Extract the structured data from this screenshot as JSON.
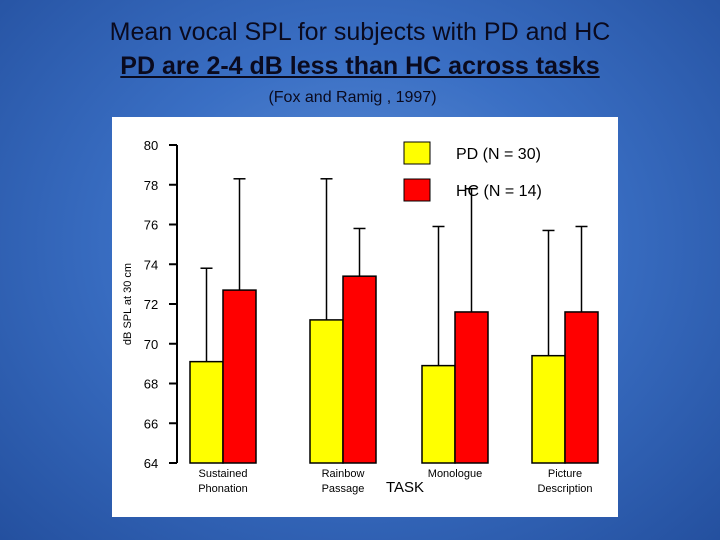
{
  "title": {
    "line1": "Mean vocal SPL for subjects with PD and HC",
    "line2": "PD are 2-4 dB less than HC across tasks",
    "citation": "(Fox and Ramig , 1997)"
  },
  "colors": {
    "pd": "#ffff00",
    "hc": "#ff0000"
  },
  "chart_data": {
    "type": "bar",
    "title": "Mean vocal SPL for subjects with PD and HC",
    "xlabel": "TASK",
    "ylabel": "dB SPL at 30 cm",
    "ylim": [
      64,
      80
    ],
    "yticks": [
      "64",
      "66",
      "68",
      "70",
      "72",
      "74",
      "76",
      "78",
      "80"
    ],
    "categories": [
      [
        "Sustained",
        "Phonation"
      ],
      [
        "Rainbow",
        "Passage"
      ],
      [
        "Monologue"
      ],
      [
        "Picture",
        "Description"
      ]
    ],
    "series": [
      {
        "name": "PD (N = 30)",
        "values": [
          69.1,
          71.2,
          68.9,
          69.4
        ],
        "error_upper": [
          73.8,
          78.3,
          75.9,
          75.7
        ]
      },
      {
        "name": "HC (N = 14)",
        "values": [
          72.7,
          73.4,
          71.6,
          71.6
        ],
        "error_upper": [
          78.3,
          75.8,
          77.8,
          75.9
        ]
      }
    ],
    "grid": false,
    "legend": "top-right"
  }
}
